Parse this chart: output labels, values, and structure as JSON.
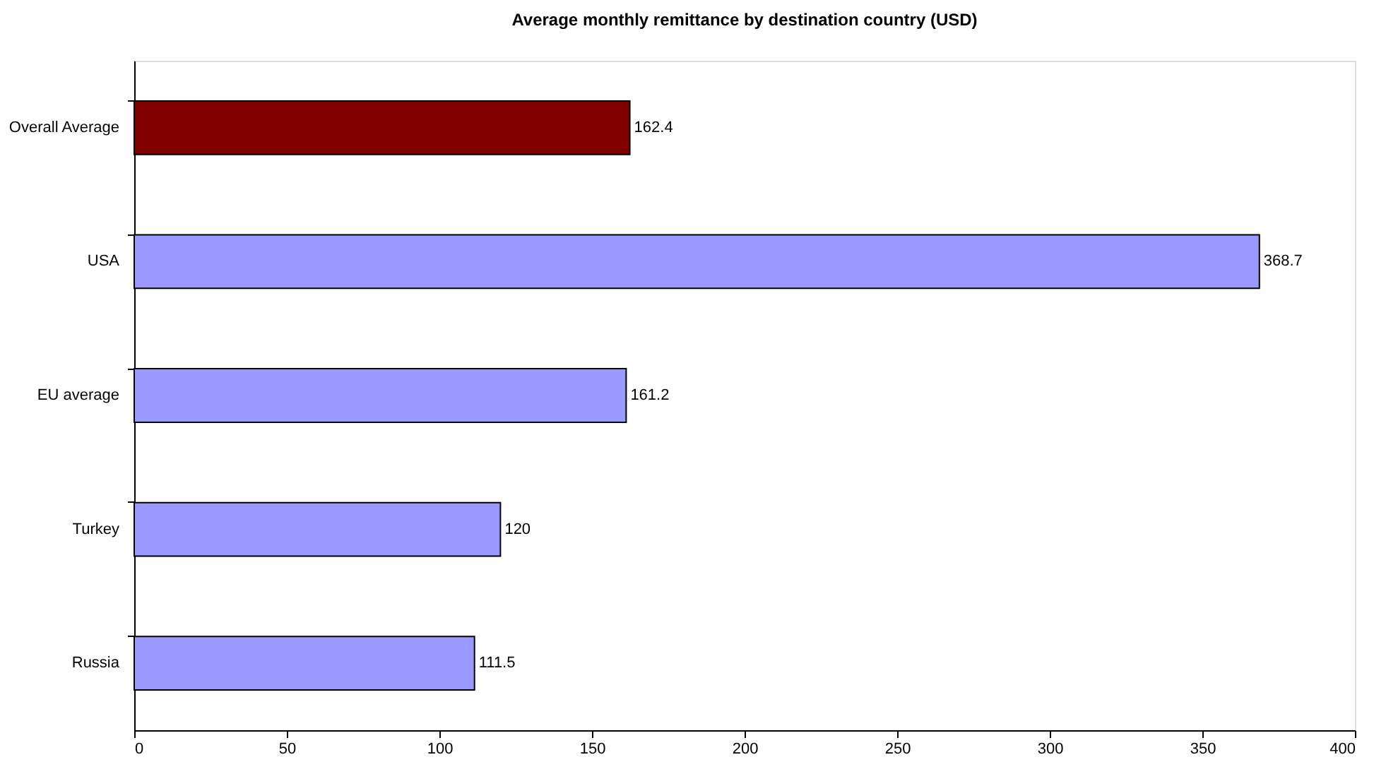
{
  "chart_data": {
    "type": "bar",
    "orientation": "horizontal",
    "title": "Average monthly remittance by destination country (USD)",
    "categories": [
      "Overall Average",
      "USA",
      "EU average",
      "Turkey",
      "Russia"
    ],
    "values": [
      162.4,
      368.7,
      161.2,
      120,
      111.5
    ],
    "colors": [
      "#800000",
      "#9999ff",
      "#9999ff",
      "#9999ff",
      "#9999ff"
    ],
    "xlim": [
      0,
      400
    ],
    "xticks": [
      0,
      50,
      100,
      150,
      200,
      250,
      300,
      350,
      400
    ],
    "data_labels": true,
    "grid": false
  }
}
